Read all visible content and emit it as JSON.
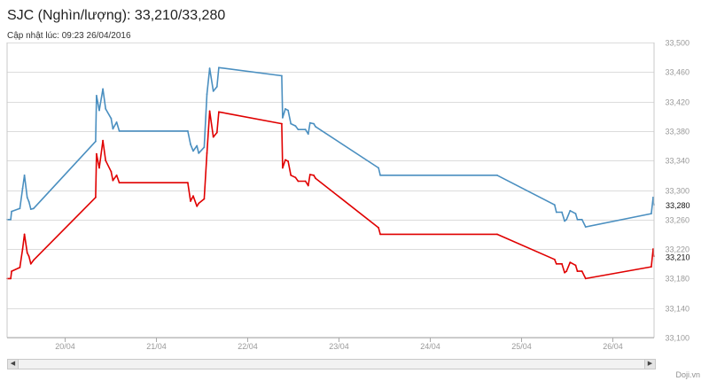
{
  "header": {
    "title": "SJC (Nghìn/lượng): 33,210/33,280",
    "updated": "Cập nhật lúc: 09:23 26/04/2016"
  },
  "credit": "Doji.vn",
  "scrollbar": {
    "left_icon": "arrow-left-icon",
    "right_icon": "arrow-right-icon"
  },
  "chart_data": {
    "type": "line",
    "title": "SJC (Nghìn/lượng): 33,210/33,280",
    "x_unit": "day (April 2016)",
    "xlim": [
      19.37,
      26.46
    ],
    "x_tick_labels": [
      "20/04",
      "21/04",
      "22/04",
      "23/04",
      "24/04",
      "25/04",
      "26/04"
    ],
    "x_ticks": [
      20,
      21,
      22,
      23,
      24,
      25,
      26
    ],
    "ylim": [
      33100,
      33500
    ],
    "y_ticks": [
      33100,
      33140,
      33180,
      33220,
      33260,
      33300,
      33340,
      33380,
      33420,
      33460,
      33500
    ],
    "y_tick_labels": [
      "33,100",
      "33,140",
      "33,180",
      "33,220",
      "33,260",
      "33,300",
      "33,340",
      "33,380",
      "33,420",
      "33,460",
      "33,500"
    ],
    "grid": true,
    "colors": {
      "sell": "#4a8fc0",
      "buy": "#e00000"
    },
    "series": [
      {
        "key": "sell",
        "last_label": "33,280",
        "points": [
          [
            19.37,
            33260
          ],
          [
            19.41,
            33260
          ],
          [
            19.42,
            33271
          ],
          [
            19.51,
            33275
          ],
          [
            19.54,
            33302
          ],
          [
            19.56,
            33320
          ],
          [
            19.59,
            33290
          ],
          [
            19.61,
            33284
          ],
          [
            19.63,
            33274
          ],
          [
            19.66,
            33275
          ],
          [
            20.34,
            33366
          ],
          [
            20.35,
            33428
          ],
          [
            20.38,
            33408
          ],
          [
            20.42,
            33437
          ],
          [
            20.45,
            33410
          ],
          [
            20.51,
            33397
          ],
          [
            20.53,
            33383
          ],
          [
            20.57,
            33392
          ],
          [
            20.6,
            33380
          ],
          [
            21.35,
            33380
          ],
          [
            21.38,
            33362
          ],
          [
            21.41,
            33353
          ],
          [
            21.45,
            33360
          ],
          [
            21.47,
            33350
          ],
          [
            21.53,
            33358
          ],
          [
            21.56,
            33430
          ],
          [
            21.59,
            33465
          ],
          [
            21.63,
            33434
          ],
          [
            21.67,
            33440
          ],
          [
            21.69,
            33466
          ],
          [
            22.38,
            33455
          ],
          [
            22.39,
            33398
          ],
          [
            22.42,
            33410
          ],
          [
            22.45,
            33408
          ],
          [
            22.48,
            33390
          ],
          [
            22.53,
            33387
          ],
          [
            22.56,
            33382
          ],
          [
            22.64,
            33382
          ],
          [
            22.67,
            33376
          ],
          [
            22.69,
            33391
          ],
          [
            22.73,
            33390
          ],
          [
            22.75,
            33386
          ],
          [
            23.44,
            33330
          ],
          [
            23.46,
            33320
          ],
          [
            24.74,
            33320
          ],
          [
            25.37,
            33280
          ],
          [
            25.39,
            33270
          ],
          [
            25.45,
            33270
          ],
          [
            25.48,
            33258
          ],
          [
            25.5,
            33260
          ],
          [
            25.54,
            33272
          ],
          [
            25.6,
            33268
          ],
          [
            25.62,
            33260
          ],
          [
            25.67,
            33260
          ],
          [
            25.71,
            33250
          ],
          [
            26.43,
            33268
          ],
          [
            26.45,
            33290
          ],
          [
            26.46,
            33280
          ]
        ]
      },
      {
        "key": "buy",
        "last_label": "33,210",
        "points": [
          [
            19.37,
            33180
          ],
          [
            19.41,
            33180
          ],
          [
            19.42,
            33190
          ],
          [
            19.51,
            33195
          ],
          [
            19.54,
            33220
          ],
          [
            19.56,
            33240
          ],
          [
            19.59,
            33215
          ],
          [
            19.61,
            33210
          ],
          [
            19.63,
            33200
          ],
          [
            19.66,
            33205
          ],
          [
            20.34,
            33290
          ],
          [
            20.35,
            33349
          ],
          [
            20.38,
            33330
          ],
          [
            20.42,
            33367
          ],
          [
            20.45,
            33340
          ],
          [
            20.51,
            33325
          ],
          [
            20.53,
            33313
          ],
          [
            20.57,
            33320
          ],
          [
            20.6,
            33310
          ],
          [
            21.35,
            33310
          ],
          [
            21.38,
            33285
          ],
          [
            21.41,
            33292
          ],
          [
            21.45,
            33278
          ],
          [
            21.47,
            33282
          ],
          [
            21.53,
            33288
          ],
          [
            21.56,
            33350
          ],
          [
            21.59,
            33407
          ],
          [
            21.63,
            33372
          ],
          [
            21.67,
            33378
          ],
          [
            21.69,
            33406
          ],
          [
            22.38,
            33390
          ],
          [
            22.39,
            33330
          ],
          [
            22.42,
            33341
          ],
          [
            22.45,
            33339
          ],
          [
            22.48,
            33320
          ],
          [
            22.53,
            33317
          ],
          [
            22.56,
            33312
          ],
          [
            22.64,
            33312
          ],
          [
            22.67,
            33306
          ],
          [
            22.69,
            33321
          ],
          [
            22.73,
            33320
          ],
          [
            22.75,
            33316
          ],
          [
            23.44,
            33249
          ],
          [
            23.46,
            33240
          ],
          [
            24.74,
            33240
          ],
          [
            25.37,
            33206
          ],
          [
            25.39,
            33200
          ],
          [
            25.45,
            33200
          ],
          [
            25.48,
            33188
          ],
          [
            25.5,
            33190
          ],
          [
            25.54,
            33202
          ],
          [
            25.6,
            33198
          ],
          [
            25.62,
            33190
          ],
          [
            25.67,
            33190
          ],
          [
            25.71,
            33180
          ],
          [
            26.43,
            33196
          ],
          [
            26.45,
            33220
          ],
          [
            26.46,
            33210
          ]
        ]
      }
    ]
  }
}
